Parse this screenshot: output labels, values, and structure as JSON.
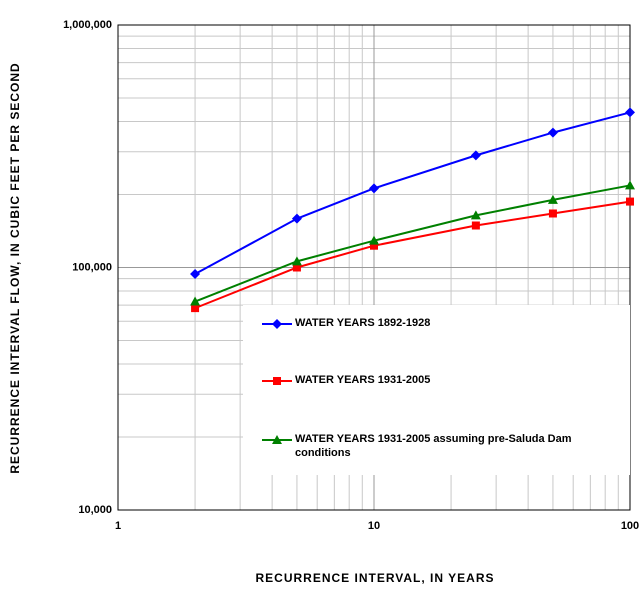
{
  "chart_data": {
    "type": "line",
    "x_label": "RECURRENCE INTERVAL, IN YEARS",
    "y_label": "RECURRENCE INTERVAL FLOW, IN CUBIC FEET PER SECOND",
    "x": [
      2,
      5,
      10,
      25,
      50,
      100
    ],
    "series": [
      {
        "name": "WATER YEARS 1892-1928",
        "color": "#0000ff",
        "marker": "diamond",
        "values": [
          94000,
          159000,
          212000,
          290000,
          360000,
          436000
        ]
      },
      {
        "name": "WATER YEARS 1931-2005",
        "color": "#ff0000",
        "marker": "square",
        "values": [
          68000,
          100000,
          123000,
          149000,
          167000,
          187000
        ]
      },
      {
        "name": "WATER YEARS 1931-2005 assuming pre-Saluda Dam conditions",
        "color": "#008000",
        "marker": "triangle",
        "values": [
          72400,
          106000,
          129000,
          164000,
          190000,
          218000
        ]
      }
    ],
    "xlim": [
      1,
      100
    ],
    "xticks": [
      1,
      10,
      100
    ],
    "ylim": [
      10000,
      1000000
    ],
    "yticks": [
      {
        "value": 10000,
        "label": "10,000"
      },
      {
        "value": 100000,
        "label": "100,000"
      },
      {
        "value": 1000000,
        "label": "1,000,000"
      }
    ],
    "xlog": true,
    "ylog": true,
    "grid": true,
    "minor_grid": true,
    "legend": "lower right"
  }
}
